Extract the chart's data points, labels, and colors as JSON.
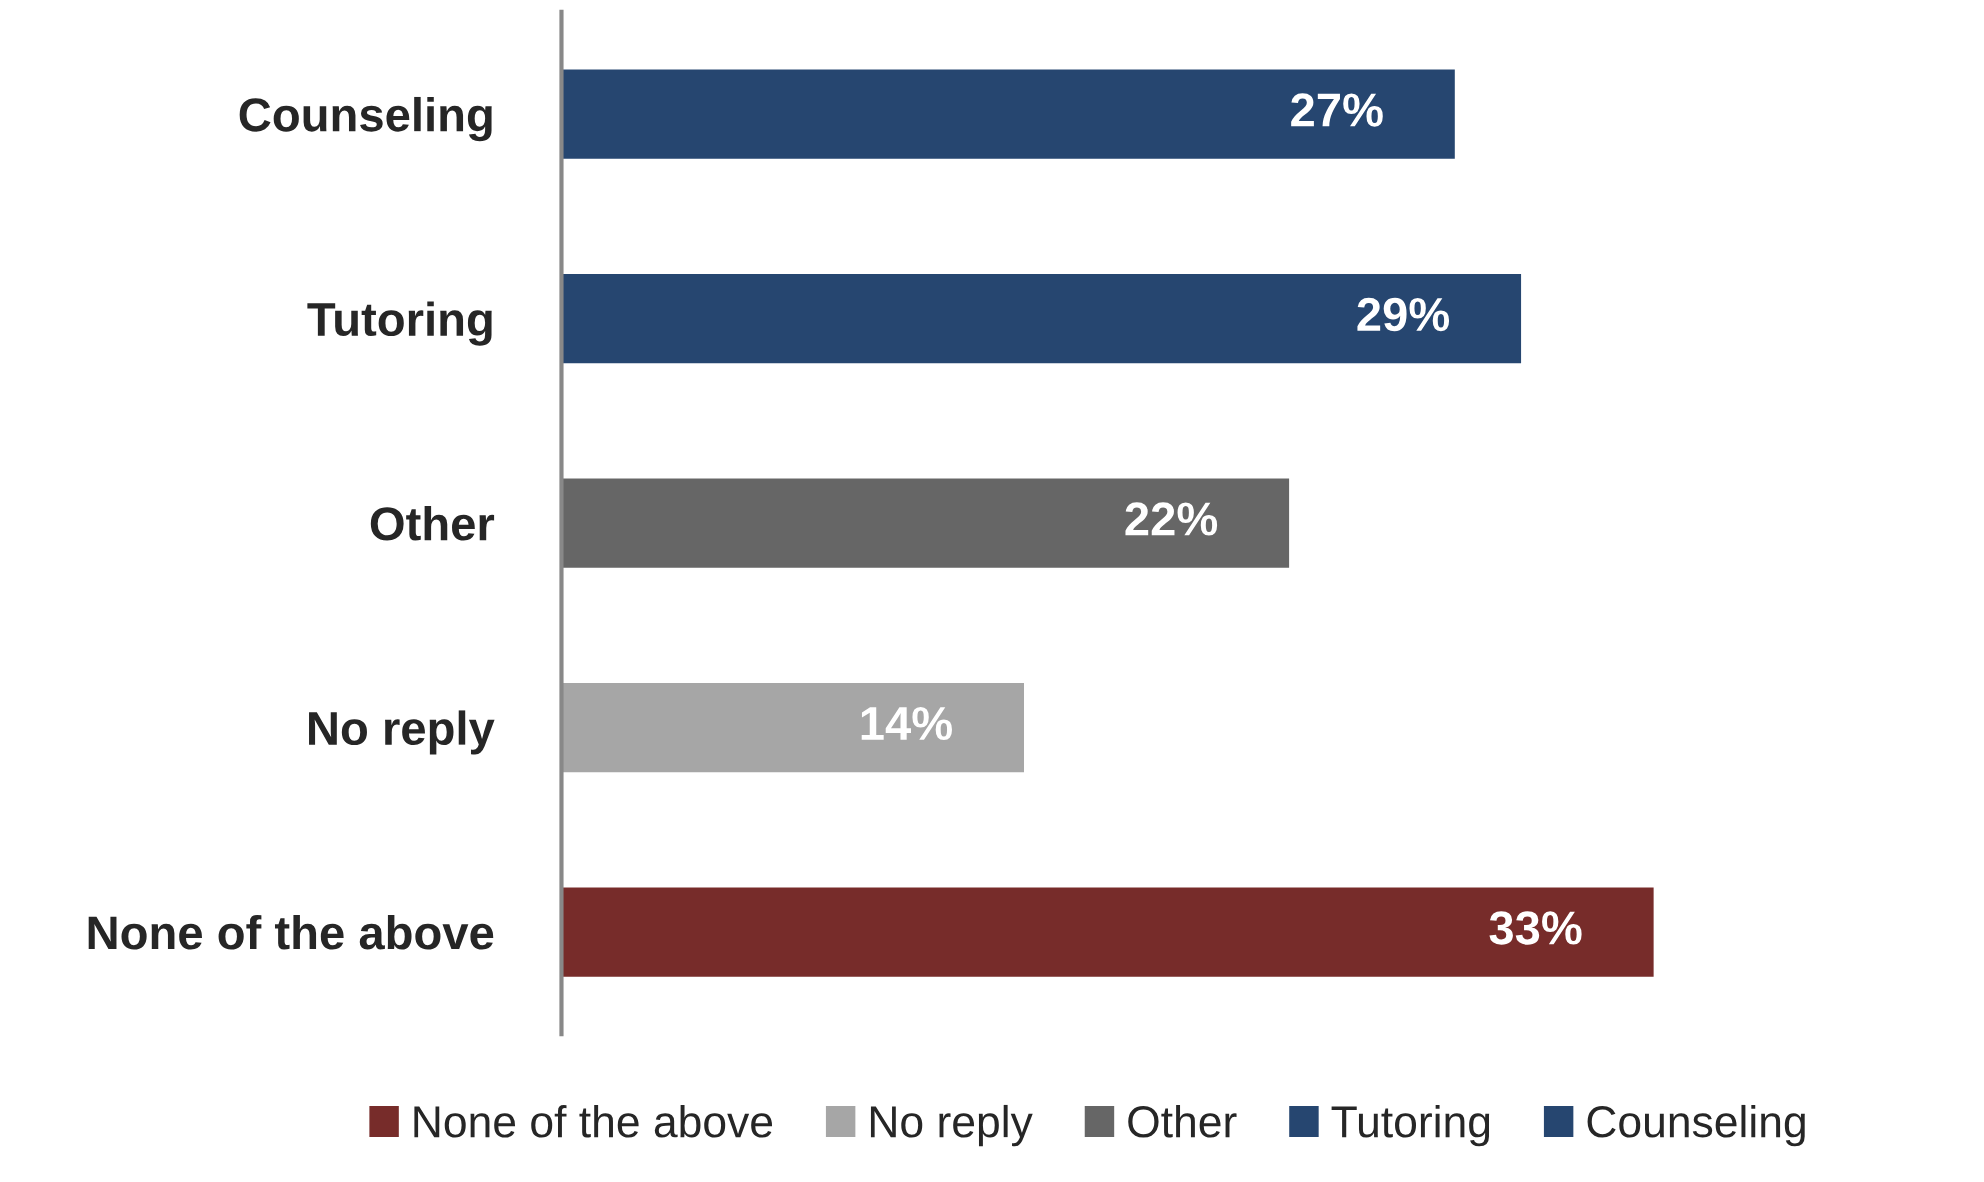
{
  "chart_data": {
    "type": "bar",
    "orientation": "horizontal",
    "categories": [
      "Counseling",
      "Tutoring",
      "Other",
      "No reply",
      "None of the above"
    ],
    "series": [
      {
        "name": "None of the above",
        "color": "#772c2a",
        "values": [
          null,
          null,
          null,
          null,
          33
        ],
        "value_labels": [
          null,
          null,
          null,
          null,
          "33%"
        ]
      },
      {
        "name": "No reply",
        "color": "#a6a6a6",
        "values": [
          null,
          null,
          null,
          14,
          null
        ],
        "value_labels": [
          null,
          null,
          null,
          "14%",
          null
        ]
      },
      {
        "name": "Other",
        "color": "#666666",
        "values": [
          null,
          null,
          22,
          null,
          null
        ],
        "value_labels": [
          null,
          null,
          "22%",
          null,
          null
        ]
      },
      {
        "name": "Tutoring",
        "color": "#264670",
        "values": [
          null,
          29,
          null,
          null,
          null
        ],
        "value_labels": [
          null,
          "29%",
          null,
          null,
          null
        ]
      },
      {
        "name": "Counseling",
        "color": "#264670",
        "values": [
          27,
          null,
          null,
          null,
          null
        ],
        "value_labels": [
          "27%",
          null,
          null,
          null,
          null
        ]
      }
    ],
    "legend": "bottom",
    "grid": false
  }
}
